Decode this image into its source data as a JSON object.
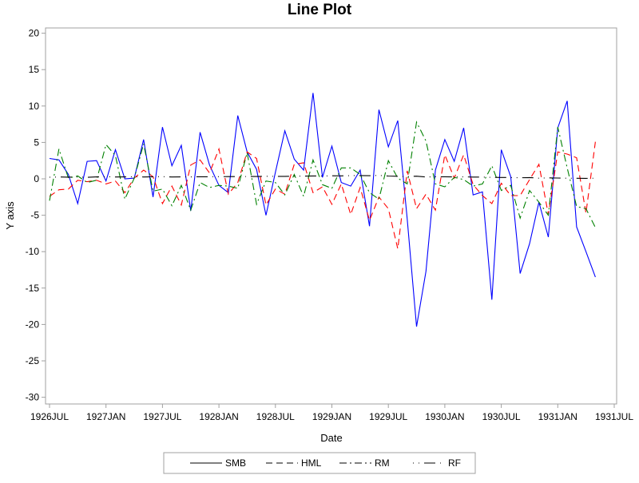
{
  "chart_data": {
    "type": "line",
    "title": "Line Plot",
    "xlabel": "Date",
    "ylabel": "Y axis",
    "ylim": [
      -31,
      21
    ],
    "yticks": [
      20,
      15,
      10,
      5,
      0,
      -5,
      -10,
      -15,
      -20,
      -25,
      -30
    ],
    "xticks": [
      "1926JUL",
      "1927JAN",
      "1927JUL",
      "1928JAN",
      "1928JUL",
      "1929JAN",
      "1929JUL",
      "1930JAN",
      "1930JUL",
      "1931JAN",
      "1931JUL"
    ],
    "x_start": "1926JUL",
    "x_end": "1931MAY",
    "grid": false,
    "legend": "bottom",
    "series": [
      {
        "name": "SMB",
        "color": "#0000ff",
        "dash": "solid",
        "values": [
          2.8,
          2.6,
          0.6,
          -3.4,
          2.4,
          2.5,
          -0.3,
          4.0,
          0.0,
          0.1,
          5.4,
          -2.5,
          7.1,
          1.8,
          4.6,
          -4.4,
          6.4,
          1.9,
          -0.9,
          -1.9,
          8.7,
          3.7,
          1.3,
          -5.0,
          0.9,
          6.6,
          2.7,
          1.2,
          11.8,
          0.2,
          4.5,
          -0.5,
          -1.0,
          1.2,
          -6.5,
          9.5,
          4.4,
          8.0,
          -5.5,
          -20.3,
          -12.7,
          1.2,
          5.4,
          2.4,
          7.0,
          -2.2,
          -1.8,
          -16.6,
          4.0,
          0.3,
          -13.0,
          -8.9,
          -3.2,
          -8.0,
          7.0,
          10.7,
          -6.6,
          -10.0,
          -13.5
        ]
      },
      {
        "name": "HML",
        "color": "#ff0000",
        "dash": "dash",
        "values": [
          -2.4,
          -1.5,
          -1.4,
          -0.2,
          -0.4,
          -0.2,
          -0.7,
          -0.3,
          -1.9,
          0.1,
          1.2,
          0.3,
          -3.4,
          -1.0,
          -3.6,
          1.9,
          2.6,
          0.8,
          4.1,
          -2.1,
          -0.5,
          3.7,
          2.8,
          -3.6,
          -1.4,
          -2.1,
          2.0,
          2.2,
          -1.9,
          -1.1,
          -3.5,
          -0.7,
          -4.9,
          -1.2,
          -5.7,
          -2.5,
          -4.1,
          -9.6,
          1.1,
          -4.1,
          -2.1,
          -4.3,
          3.3,
          0.1,
          3.3,
          -0.8,
          -2.3,
          -3.4,
          -0.6,
          -2.3,
          -2.3,
          -0.1,
          2.0,
          -4.9,
          3.7,
          3.4,
          2.9,
          -4.7,
          5.1
        ]
      },
      {
        "name": "RM",
        "color": "#008000",
        "dash": "dashdot",
        "values": [
          -3.0,
          4.1,
          0.1,
          0.4,
          -0.5,
          -0.2,
          4.7,
          3.2,
          -2.8,
          0.1,
          4.8,
          -1.7,
          -1.4,
          -3.7,
          -0.9,
          -4.3,
          -0.5,
          -1.2,
          -0.9,
          -1.0,
          -1.3,
          3.6,
          -3.5,
          -0.3,
          -0.5,
          -2.2,
          0.6,
          -2.4,
          2.6,
          -0.8,
          -1.3,
          1.5,
          1.5,
          0.6,
          -1.9,
          -2.8,
          2.5,
          0.1,
          -0.7,
          7.8,
          5.2,
          -0.7,
          -1.1,
          0.2,
          -0.1,
          -1.0,
          -0.7,
          1.8,
          -1.6,
          -0.9,
          -5.4,
          -1.6,
          -3.2,
          -5.0,
          7.1,
          1.5,
          -3.8,
          -4.1,
          -6.7
        ]
      },
      {
        "name": "RF",
        "color": "#000000",
        "dash": "dotdash",
        "values": [
          0.22,
          0.25,
          0.23,
          0.25,
          0.21,
          0.26,
          0.3,
          0.25,
          0.26,
          0.3,
          0.25,
          0.28,
          0.3,
          0.25,
          0.27,
          0.26,
          0.28,
          0.29,
          0.3,
          0.31,
          0.31,
          0.32,
          0.32,
          0.35,
          0.34,
          0.34,
          0.37,
          0.37,
          0.4,
          0.38,
          0.42,
          0.41,
          0.44,
          0.45,
          0.43,
          0.47,
          0.38,
          0.35,
          0.31,
          0.36,
          0.25,
          0.29,
          0.28,
          0.26,
          0.27,
          0.24,
          0.24,
          0.2,
          0.19,
          0.17,
          0.14,
          0.18,
          0.09,
          0.13,
          0.11,
          0.09,
          0.08,
          0.07,
          0.09
        ]
      }
    ]
  }
}
